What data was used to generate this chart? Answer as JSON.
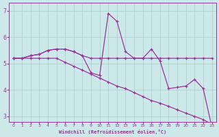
{
  "xlabel": "Windchill (Refroidissement éolien,°C)",
  "xlim": [
    -0.5,
    23.5
  ],
  "ylim": [
    2.8,
    7.3
  ],
  "yticks": [
    3,
    4,
    5,
    6,
    7
  ],
  "xticks": [
    0,
    1,
    2,
    3,
    4,
    5,
    6,
    7,
    8,
    9,
    10,
    11,
    12,
    13,
    14,
    15,
    16,
    17,
    18,
    19,
    20,
    21,
    22,
    23
  ],
  "bg_color": "#cde8e8",
  "grid_color": "#b0d0d0",
  "line_color": "#993399",
  "line1_x": [
    0,
    1,
    2,
    3,
    4,
    5,
    6,
    7,
    8,
    9,
    10,
    11,
    12,
    13,
    14,
    15,
    16,
    17,
    18,
    19,
    20,
    21,
    22,
    23
  ],
  "line1_y": [
    5.2,
    5.2,
    5.3,
    5.35,
    5.5,
    5.55,
    5.55,
    5.45,
    5.3,
    5.2,
    5.2,
    5.2,
    5.2,
    5.2,
    5.2,
    5.2,
    5.2,
    5.2,
    5.2,
    5.2,
    5.2,
    5.2,
    5.2,
    5.2
  ],
  "line2_x": [
    0,
    1,
    2,
    3,
    4,
    5,
    6,
    7,
    8,
    9,
    10,
    11,
    12,
    13,
    14,
    15,
    16,
    17,
    18,
    19,
    20,
    21,
    22,
    23
  ],
  "line2_y": [
    5.2,
    5.2,
    5.3,
    5.35,
    5.5,
    5.55,
    5.55,
    5.45,
    5.3,
    4.65,
    4.55,
    6.9,
    6.6,
    5.45,
    5.2,
    5.2,
    5.55,
    5.1,
    4.05,
    4.1,
    4.15,
    4.4,
    4.05,
    2.6
  ],
  "line3_x": [
    0,
    1,
    2,
    3,
    4,
    5,
    6,
    7,
    8,
    9,
    10,
    11,
    12,
    13,
    14,
    15,
    16,
    17,
    18,
    19,
    20,
    21,
    22,
    23
  ],
  "line3_y": [
    5.2,
    5.2,
    5.2,
    5.2,
    5.2,
    5.2,
    5.05,
    4.9,
    4.75,
    4.6,
    4.45,
    4.3,
    4.15,
    4.05,
    3.9,
    3.75,
    3.6,
    3.5,
    3.38,
    3.25,
    3.12,
    3.0,
    2.88,
    2.7
  ]
}
